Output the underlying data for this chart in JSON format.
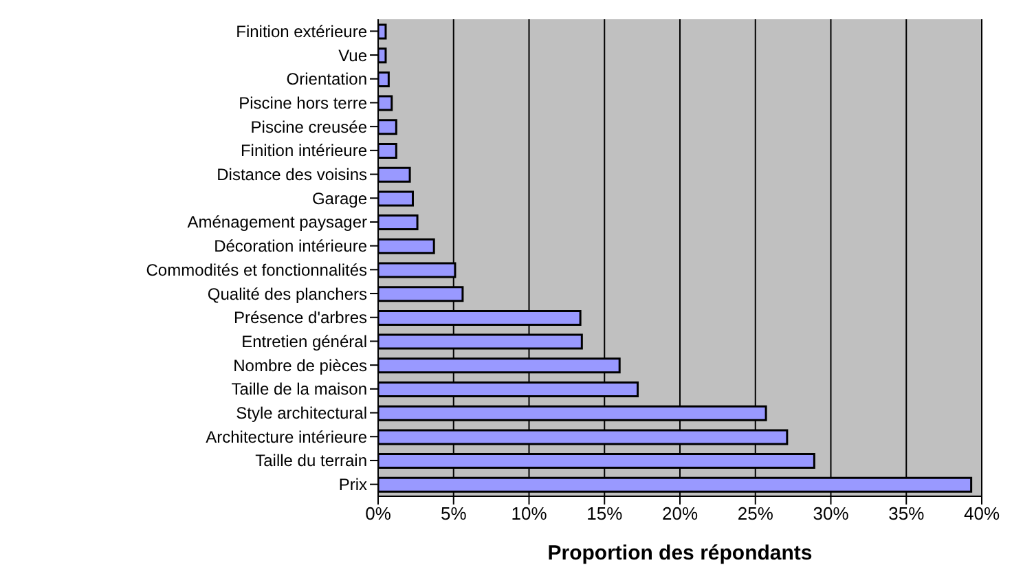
{
  "chart_data": {
    "type": "bar",
    "orientation": "horizontal",
    "xlabel": "Proportion des répondants",
    "categories": [
      "Finition extérieure",
      "Vue",
      "Orientation",
      "Piscine hors terre",
      "Piscine creusée",
      "Finition intérieure",
      "Distance des voisins",
      "Garage",
      "Aménagement paysager",
      "Décoration intérieure",
      "Commodités et fonctionnalités",
      "Qualité des planchers",
      "Présence d'arbres",
      "Entretien général",
      "Nombre de pièces",
      "Taille de la maison",
      "Style architectural",
      "Architecture intérieure",
      "Taille du terrain",
      "Prix"
    ],
    "values": [
      0.5,
      0.5,
      0.7,
      0.9,
      1.2,
      1.2,
      2.1,
      2.3,
      2.6,
      3.7,
      5.1,
      5.6,
      13.4,
      13.5,
      16.0,
      17.2,
      25.7,
      27.1,
      28.9,
      39.3
    ],
    "color": "#9999ff",
    "xlim": [
      0,
      40
    ],
    "xticks": [
      {
        "value": 0,
        "label": "0%"
      },
      {
        "value": 5,
        "label": "5%"
      },
      {
        "value": 10,
        "label": "10%"
      },
      {
        "value": 15,
        "label": "15%"
      },
      {
        "value": 20,
        "label": "20%"
      },
      {
        "value": 25,
        "label": "25%"
      },
      {
        "value": 30,
        "label": "30%"
      },
      {
        "value": 35,
        "label": "35%"
      },
      {
        "value": 40,
        "label": "40%"
      }
    ],
    "grid": "x"
  }
}
